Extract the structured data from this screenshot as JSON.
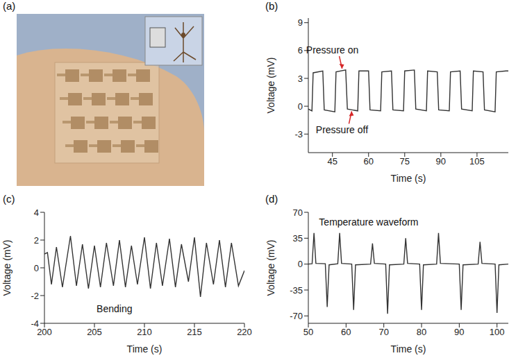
{
  "photo": {
    "panel": "(a)"
  },
  "chart_data": [
    {
      "panel": "(b)",
      "type": "line",
      "xlabel": "Time (s)",
      "ylabel": "Voltage (mV)",
      "color": "#333333",
      "xlim": [
        35,
        118
      ],
      "xticks": [
        45,
        60,
        75,
        90,
        105
      ],
      "ylim": [
        -5,
        9.5
      ],
      "yticks": [
        -3,
        0,
        3,
        6,
        9
      ],
      "x": [
        35,
        36.5,
        37,
        41,
        41.6,
        46,
        46.5,
        50.5,
        51.2,
        55.5,
        56,
        60,
        60.6,
        65,
        65.5,
        69.5,
        70.1,
        74.5,
        75,
        79,
        79.6,
        84,
        84.5,
        88.5,
        89.1,
        93.5,
        94,
        98,
        98.6,
        103,
        103.5,
        107.5,
        108.1,
        112.5,
        113,
        117,
        118
      ],
      "values": [
        -0.3,
        -0.5,
        3.6,
        3.8,
        -0.4,
        -0.6,
        3.7,
        3.9,
        -0.3,
        -0.5,
        3.8,
        3.8,
        -0.4,
        -0.5,
        3.7,
        3.8,
        -0.4,
        -0.5,
        3.8,
        3.9,
        -0.3,
        -0.5,
        3.8,
        3.7,
        -0.4,
        -0.5,
        3.7,
        3.8,
        -0.3,
        -0.5,
        3.8,
        3.7,
        -0.4,
        -0.6,
        3.7,
        3.8,
        3.8
      ],
      "annotations": [
        {
          "text": "Pressure on",
          "x": 49,
          "y": 3.9,
          "marker": "arrow"
        },
        {
          "text": "Pressure off",
          "x": 53,
          "y": -0.4,
          "marker": "arrow"
        }
      ]
    },
    {
      "panel": "(c)",
      "type": "line",
      "xlabel": "Time (s)",
      "ylabel": "Voltage (mV)",
      "color": "#333333",
      "xlim": [
        200,
        220
      ],
      "xticks": [
        200,
        205,
        210,
        215,
        220
      ],
      "ylim": [
        -4,
        4
      ],
      "yticks": [
        -4,
        -2,
        0,
        2,
        4
      ],
      "x": [
        200,
        200.3,
        200.7,
        201.2,
        201.8,
        202.6,
        203.2,
        203.8,
        204.4,
        205,
        205.6,
        206.2,
        206.9,
        207.5,
        208.1,
        208.7,
        209.3,
        210,
        210.6,
        211.2,
        211.8,
        212.5,
        213.1,
        213.7,
        214.4,
        215,
        215.6,
        216.2,
        216.9,
        217.5,
        218.1,
        218.7,
        219.4,
        220
      ],
      "values": [
        1.0,
        1.1,
        -1.2,
        1.5,
        -1.4,
        2.3,
        -1.3,
        1.7,
        -1.5,
        1.6,
        -1.4,
        1.8,
        -1.3,
        2.0,
        -1.4,
        1.6,
        -1.2,
        2.2,
        -1.5,
        1.8,
        -1.3,
        2.1,
        -1.4,
        1.7,
        -1.0,
        2.2,
        -2.1,
        1.8,
        -1.2,
        2.0,
        -1.4,
        1.8,
        -1.3,
        -0.2
      ],
      "annotations": [
        {
          "text": "Bending",
          "x": 207,
          "y": -3.2
        }
      ]
    },
    {
      "panel": "(d)",
      "type": "line",
      "xlabel": "Time (s)",
      "ylabel": "Voltage (mV)",
      "color": "#333333",
      "xlim": [
        50,
        103
      ],
      "xticks": [
        50,
        60,
        70,
        80,
        90,
        100
      ],
      "ylim": [
        -80,
        70
      ],
      "yticks": [
        -70,
        -35,
        0,
        35,
        70
      ],
      "x": [
        50,
        51,
        51.5,
        52,
        54.5,
        55,
        55.5,
        57.8,
        58.3,
        58.8,
        61.5,
        62,
        62.5,
        66.5,
        67,
        67.5,
        70.5,
        71,
        71.5,
        75.3,
        75.8,
        76.3,
        79.5,
        80,
        80.5,
        84,
        84.5,
        85,
        90,
        90.5,
        91,
        95,
        95.5,
        96,
        99.5,
        100,
        100.5,
        103
      ],
      "values": [
        0,
        0.5,
        42,
        1,
        0.5,
        -58,
        -1,
        0.5,
        42,
        1,
        0,
        -62,
        -1,
        0,
        28,
        1,
        0,
        -67,
        -1,
        0,
        35,
        1,
        0,
        -62,
        -1,
        0,
        42,
        1,
        0,
        -62,
        -1,
        0,
        30,
        1,
        0,
        -66,
        -1,
        0
      ],
      "annotations": [
        {
          "text": "Temperature waveform",
          "x": 66,
          "y": 52
        }
      ]
    }
  ]
}
